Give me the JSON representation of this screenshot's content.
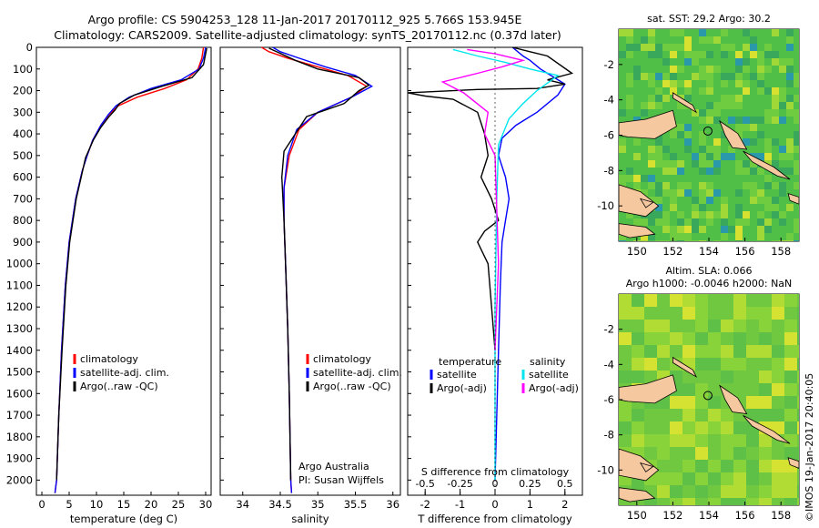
{
  "header": {
    "line1": "Argo profile: CS 5904253_128 11-Jan-2017 20170112_925 5.766S 153.945E",
    "line2": "Climatology: CARS2009. Satellite-adjusted climatology: synTS_20170112.nc (0.37d later)"
  },
  "side_label": "©IMOS 19-Jan-2017 20:40:05",
  "colors": {
    "climatology": "#ff0000",
    "satellite": "#0000ff",
    "argo": "#000000",
    "sal_satellite": "#00e5ee",
    "sal_argo": "#ff00ff",
    "land": "#f5c8a0",
    "map_green": "#5cc44a",
    "marker": "#2f8f2f"
  },
  "chart_data": [
    {
      "id": "temperature",
      "type": "line",
      "xlabel": "temperature (deg C)",
      "ylabel": "",
      "xlim": [
        -1,
        31
      ],
      "ylim": [
        2070,
        0
      ],
      "xticks": [
        "0",
        "5",
        "10",
        "15",
        "20",
        "25",
        "30"
      ],
      "yticks": [
        "0",
        "100",
        "200",
        "300",
        "400",
        "500",
        "600",
        "700",
        "800",
        "900",
        "1000",
        "1100",
        "1200",
        "1300",
        "1400",
        "1500",
        "1600",
        "1700",
        "1800",
        "1900",
        "2000"
      ],
      "legend": [
        "climatology",
        "satellite-adj. clim.",
        "Argo(..raw -QC)"
      ],
      "series": [
        {
          "name": "climatology",
          "color": "climatology",
          "x": [
            29.6,
            29.3,
            28.6,
            26.5,
            22.5,
            17.5,
            14.0,
            12.3,
            10.8,
            9.3,
            8.3,
            7.4,
            6.2,
            5.0,
            4.3,
            3.6,
            3.1,
            2.7,
            2.4
          ],
          "y": [
            0,
            50,
            100,
            150,
            190,
            230,
            270,
            310,
            360,
            430,
            500,
            570,
            700,
            900,
            1100,
            1400,
            1700,
            2000,
            2060
          ]
        },
        {
          "name": "satellite-adj. clim.",
          "color": "satellite",
          "x": [
            30.0,
            29.6,
            28.8,
            25.5,
            20.0,
            16.0,
            13.6,
            12.2,
            10.8,
            9.3,
            8.3,
            7.4,
            6.2,
            5.0,
            4.3,
            3.6,
            3.1,
            2.7,
            2.4
          ],
          "y": [
            0,
            50,
            100,
            150,
            190,
            230,
            270,
            310,
            360,
            430,
            500,
            570,
            700,
            900,
            1100,
            1400,
            1700,
            2000,
            2060
          ]
        },
        {
          "name": "Argo(..raw -QC)",
          "color": "argo",
          "x": [
            30.2,
            30.0,
            29.6,
            27.5,
            22.0,
            17.0,
            14.2,
            13.4,
            12.3,
            10.8,
            9.4,
            8.0,
            7.2,
            6.3,
            5.1,
            4.4,
            3.7,
            3.1,
            2.7
          ],
          "y": [
            4,
            30,
            80,
            140,
            180,
            220,
            260,
            290,
            320,
            370,
            430,
            510,
            600,
            700,
            900,
            1100,
            1400,
            1700,
            2000
          ]
        }
      ]
    },
    {
      "id": "salinity",
      "type": "line",
      "xlabel": "salinity",
      "ylabel": "",
      "xlim": [
        33.7,
        36.1
      ],
      "ylim": [
        2070,
        0
      ],
      "xticks": [
        "34",
        "34.5",
        "35",
        "35.5",
        "36"
      ],
      "legend": [
        "climatology",
        "satellite-adj. clim.",
        "Argo(..raw -QC)"
      ],
      "annotation": [
        "Argo Australia",
        "PI: Susan Wijffels"
      ],
      "series": [
        {
          "name": "climatology",
          "color": "climatology",
          "x": [
            34.25,
            34.35,
            34.6,
            35.0,
            35.4,
            35.65,
            35.45,
            35.0,
            34.75,
            34.62,
            34.55,
            34.55,
            34.57,
            34.6,
            34.62,
            34.63,
            34.64,
            34.65
          ],
          "y": [
            0,
            20,
            50,
            90,
            130,
            180,
            230,
            300,
            380,
            500,
            650,
            800,
            1000,
            1300,
            1600,
            1800,
            2000,
            2060
          ]
        },
        {
          "name": "satellite-adj. clim.",
          "color": "satellite",
          "x": [
            34.4,
            34.5,
            34.75,
            35.1,
            35.5,
            35.72,
            35.45,
            35.0,
            34.72,
            34.6,
            34.55,
            34.55,
            34.57,
            34.6,
            34.62,
            34.63,
            34.64,
            34.65
          ],
          "y": [
            0,
            20,
            50,
            90,
            130,
            180,
            230,
            300,
            380,
            500,
            650,
            800,
            1000,
            1300,
            1600,
            1800,
            2000,
            2060
          ]
        },
        {
          "name": "Argo(..raw -QC)",
          "color": "argo",
          "x": [
            34.35,
            34.45,
            34.7,
            35.0,
            35.55,
            35.68,
            35.55,
            35.35,
            34.85,
            34.55,
            34.52,
            34.55,
            34.57,
            34.6,
            34.62,
            34.64
          ],
          "y": [
            4,
            20,
            60,
            100,
            140,
            175,
            200,
            260,
            320,
            480,
            600,
            800,
            1000,
            1300,
            1600,
            2000
          ]
        }
      ]
    },
    {
      "id": "difference",
      "type": "line",
      "xlabel": "T difference from climatology",
      "title": "S difference from climatology",
      "xlim": [
        -2.5,
        2.5
      ],
      "ylim": [
        2070,
        0
      ],
      "xticks": [
        "-2",
        "-1",
        "0",
        "1",
        "2"
      ],
      "top_ticks": [
        "-0.5",
        "-0.25",
        "0",
        "0.25",
        "0.5"
      ],
      "legend_titles": [
        "temperature",
        "salinity"
      ],
      "legend": [
        "satellite",
        "Argo(-adj)",
        "satellite",
        "Argo(-adj)"
      ],
      "series": [
        {
          "name": "satellite",
          "group": "temperature",
          "color": "satellite",
          "x": [
            0.5,
            0.8,
            1.0,
            1.3,
            2.0,
            1.8,
            1.2,
            0.6,
            0.2,
            0.1,
            0.3,
            0.4,
            0.3,
            0.2,
            0.15,
            0.1,
            0.0
          ],
          "y": [
            0,
            40,
            60,
            100,
            170,
            220,
            300,
            360,
            420,
            500,
            600,
            700,
            800,
            900,
            1100,
            1400,
            2000
          ]
        },
        {
          "name": "Argo(-adj)",
          "group": "temperature",
          "color": "argo",
          "x": [
            0.5,
            1.0,
            1.5,
            2.2,
            1.5,
            2.0,
            1.2,
            -0.5,
            -2.5,
            -2.0,
            -1.2,
            -0.5,
            -0.3,
            -0.2,
            -0.4,
            -0.1,
            0.1,
            -0.3,
            -0.5,
            -0.2,
            -0.1,
            0.0
          ],
          "y": [
            0,
            20,
            40,
            120,
            150,
            170,
            190,
            195,
            210,
            225,
            240,
            300,
            400,
            500,
            600,
            700,
            800,
            850,
            900,
            1000,
            1200,
            1400
          ]
        },
        {
          "name": "satellite",
          "group": "salinity",
          "color": "sal_satellite",
          "x": [
            -1.2,
            -0.5,
            0.3,
            1.0,
            1.8,
            1.2,
            0.8,
            0.4,
            0.1,
            0.05,
            0.0,
            0.0
          ],
          "y": [
            10,
            40,
            70,
            100,
            130,
            200,
            260,
            330,
            450,
            700,
            1200,
            2000
          ]
        },
        {
          "name": "Argo(-adj)",
          "group": "salinity",
          "color": "sal_argo",
          "x": [
            -0.8,
            0.0,
            0.8,
            0.2,
            -0.5,
            -1.5,
            -0.9,
            -0.2,
            -0.3,
            0.0,
            0.1,
            0.0
          ],
          "y": [
            10,
            30,
            60,
            90,
            120,
            160,
            210,
            300,
            400,
            500,
            1000,
            1400
          ]
        }
      ]
    },
    {
      "id": "map_sst",
      "type": "heatmap",
      "title": "sat. SST: 29.2  Argo: 30.2",
      "xlim": [
        149,
        159
      ],
      "ylim": [
        -12,
        0
      ],
      "xticks": [
        "150",
        "152",
        "154",
        "156",
        "158"
      ],
      "yticks": [
        "-2",
        "-4",
        "-6",
        "-8",
        "-10"
      ],
      "marker": {
        "lon": 153.945,
        "lat": -5.766
      }
    },
    {
      "id": "map_sla",
      "type": "heatmap",
      "title": "Altim. SLA: 0.066",
      "subtitle": "Argo h1000: -0.0046  h2000: NaN",
      "xlim": [
        149,
        159
      ],
      "ylim": [
        -12,
        0
      ],
      "xticks": [
        "150",
        "152",
        "154",
        "156",
        "158"
      ],
      "yticks": [
        "-2",
        "-4",
        "-6",
        "-8",
        "-10"
      ],
      "marker": {
        "lon": 153.945,
        "lat": -5.766
      }
    }
  ]
}
